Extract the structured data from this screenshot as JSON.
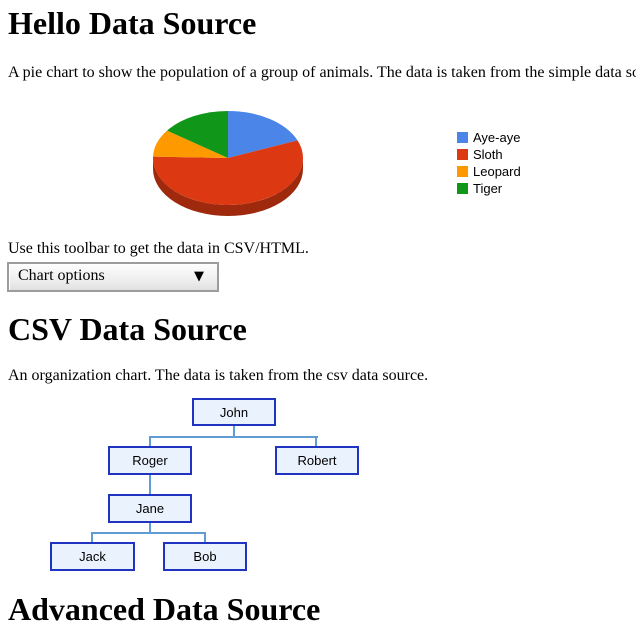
{
  "hello_section": {
    "heading": "Hello Data Source",
    "description": "A pie chart to show the population of a group of animals. The data is taken from the simple data source.",
    "toolbar_hint": "Use this toolbar to get the data in CSV/HTML.",
    "toolbar": {
      "label": "Chart options",
      "arrow_icon": "▼"
    }
  },
  "chart_data": {
    "type": "pie",
    "is3d": true,
    "categories": [
      "Aye-aye",
      "Sloth",
      "Leopard",
      "Tiger"
    ],
    "values": [
      100,
      300,
      50,
      80
    ],
    "colors": [
      "#4a85e7",
      "#dc3912",
      "#ff9900",
      "#109618"
    ],
    "legend_position": "right",
    "start_angle_deg": 0
  },
  "csv_section": {
    "heading": "CSV Data Source",
    "description": "An organization chart. The data is taken from the csv data source.",
    "org_chart": {
      "type": "orgchart",
      "node_bg": "#eaf3fd",
      "node_border": "#2033c0",
      "line_color": "#5f9bd5",
      "nodes": [
        {
          "label": "John",
          "parent": ""
        },
        {
          "label": "Roger",
          "parent": "John"
        },
        {
          "label": "Robert",
          "parent": "John"
        },
        {
          "label": "Jane",
          "parent": "Roger"
        },
        {
          "label": "Jack",
          "parent": "Jane"
        },
        {
          "label": "Bob",
          "parent": "Jane"
        }
      ]
    }
  },
  "advanced_section": {
    "heading": "Advanced Data Source"
  }
}
